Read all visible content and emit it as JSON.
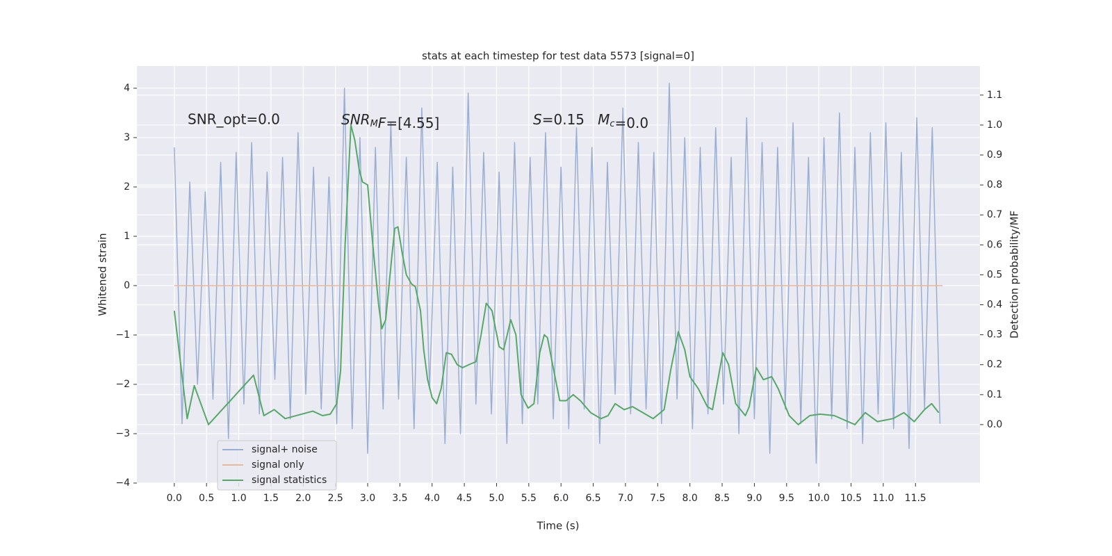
{
  "chart_data": {
    "type": "line",
    "title": "stats at each timestep for test data 5573 [signal=0]",
    "xlabel": "Time (s)",
    "ylabel": "Whitened strain",
    "y2label": "Detection probability/MF",
    "xlim": [
      -0.58,
      12.5
    ],
    "ylim": [
      -4,
      4.45
    ],
    "y2lim": [
      -0.195,
      1.197
    ],
    "xticks": [
      {
        "value": 0,
        "label": "0.0"
      },
      0.5,
      {
        "value": 1,
        "label": "1.0"
      },
      1.5,
      {
        "value": 2,
        "label": "2.0"
      },
      2.5,
      {
        "value": 3,
        "label": "3.0"
      },
      3.5,
      {
        "value": 4,
        "label": "4.0"
      },
      4.5,
      {
        "value": 5,
        "label": "5.0"
      },
      5.5,
      {
        "value": 6,
        "label": "6.0"
      },
      6.5,
      {
        "value": 7,
        "label": "7.0"
      },
      7.5,
      {
        "value": 8,
        "label": "8.0"
      },
      8.5,
      {
        "value": 9,
        "label": "9.0"
      },
      9.5,
      {
        "value": 10,
        "label": "10.0"
      },
      10.5,
      {
        "value": 11,
        "label": "11.0"
      },
      11.5
    ],
    "yticks": [
      {
        "value": -4,
        "label": "−4"
      },
      {
        "value": -3,
        "label": "−3"
      },
      {
        "value": -2,
        "label": "−2"
      },
      {
        "value": -1,
        "label": "−1"
      },
      0,
      1,
      2,
      3,
      4
    ],
    "y2ticks": [
      {
        "value": 0,
        "label": "0.0"
      },
      0.1,
      0.2,
      0.3,
      0.4,
      0.5,
      0.6,
      0.7,
      0.8,
      0.9,
      {
        "value": 1,
        "label": "1.0"
      },
      1.1
    ],
    "grid": true,
    "legend": "lower left",
    "annotations": [
      {
        "text": "SNR_opt=0.0",
        "math": false
      },
      {
        "text": "SNR_MF=[4.55]",
        "math": true
      },
      {
        "text": "S=0.15   M_c=0.0",
        "math": true
      }
    ],
    "series": [
      {
        "name": "signal+ noise",
        "color": "#9aaed3",
        "x": [
          0,
          0.12,
          0.24,
          0.36,
          0.48,
          0.6,
          0.72,
          0.84,
          0.96,
          1.08,
          1.2,
          1.32,
          1.44,
          1.56,
          1.68,
          1.8,
          1.92,
          2.04,
          2.16,
          2.28,
          2.4,
          2.52,
          2.64,
          2.76,
          2.88,
          3.0,
          3.12,
          3.24,
          3.36,
          3.48,
          3.6,
          3.72,
          3.84,
          3.96,
          4.08,
          4.2,
          4.32,
          4.44,
          4.56,
          4.68,
          4.8,
          4.92,
          5.04,
          5.16,
          5.28,
          5.4,
          5.52,
          5.64,
          5.76,
          5.88,
          6.0,
          6.12,
          6.24,
          6.36,
          6.48,
          6.6,
          6.72,
          6.84,
          6.96,
          7.08,
          7.2,
          7.32,
          7.44,
          7.56,
          7.68,
          7.8,
          7.92,
          8.04,
          8.16,
          8.28,
          8.4,
          8.52,
          8.64,
          8.76,
          8.88,
          9.0,
          9.12,
          9.24,
          9.36,
          9.48,
          9.6,
          9.72,
          9.84,
          9.96,
          10.08,
          10.2,
          10.32,
          10.44,
          10.56,
          10.68,
          10.8,
          10.92,
          11.04,
          11.16,
          11.28,
          11.4,
          11.52,
          11.64,
          11.76,
          11.88
        ],
        "values": [
          2.8,
          -2.8,
          2.1,
          -2.0,
          1.9,
          -2.3,
          2.5,
          -3.1,
          2.7,
          -2.4,
          2.9,
          -2.6,
          2.3,
          -1.9,
          2.6,
          -2.7,
          3.1,
          -2.2,
          2.4,
          -2.5,
          2.2,
          -2.8,
          4.0,
          -2.9,
          3.0,
          -3.4,
          2.8,
          -2.5,
          3.3,
          -2.3,
          2.6,
          -2.9,
          3.6,
          -2.1,
          2.5,
          -3.2,
          2.4,
          -3.0,
          3.9,
          -2.4,
          2.7,
          -2.6,
          2.3,
          -3.2,
          2.9,
          -2.8,
          2.6,
          -2.4,
          3.1,
          -2.7,
          2.4,
          -2.9,
          3.2,
          -2.5,
          2.8,
          -3.2,
          2.5,
          -2.2,
          3.6,
          -2.6,
          2.9,
          -2.5,
          2.7,
          -2.8,
          4.1,
          -2.3,
          3.0,
          -2.9,
          2.8,
          -2.6,
          3.2,
          -2.4,
          2.6,
          -3.0,
          3.4,
          -2.7,
          2.9,
          -3.4,
          2.8,
          -2.5,
          3.3,
          -2.8,
          2.6,
          -3.6,
          3.0,
          -2.7,
          3.5,
          -2.9,
          2.8,
          -3.2,
          3.1,
          -2.6,
          3.3,
          -2.9,
          2.7,
          -3.3,
          3.4,
          -2.5,
          3.2,
          -2.8
        ]
      },
      {
        "name": "signal only",
        "color": "#e9b89a",
        "x": [
          0,
          11.92
        ],
        "values": [
          0,
          0
        ]
      },
      {
        "name": "signal statistics",
        "color": "#55a868",
        "axis": "y2",
        "x": [
          0,
          0.2,
          0.31,
          0.53,
          1.23,
          1.39,
          1.55,
          1.72,
          2.15,
          2.3,
          2.42,
          2.52,
          2.58,
          2.65,
          2.74,
          2.8,
          2.87,
          2.92,
          3.0,
          3.08,
          3.17,
          3.22,
          3.28,
          3.37,
          3.42,
          3.47,
          3.53,
          3.6,
          3.68,
          3.74,
          3.82,
          3.87,
          3.93,
          4.0,
          4.07,
          4.14,
          4.22,
          4.3,
          4.39,
          4.47,
          4.57,
          4.68,
          4.76,
          4.84,
          4.93,
          5.04,
          5.11,
          5.22,
          5.3,
          5.38,
          5.49,
          5.58,
          5.67,
          5.74,
          5.79,
          5.87,
          5.98,
          6.08,
          6.19,
          6.3,
          6.46,
          6.62,
          6.73,
          6.84,
          6.98,
          7.11,
          7.27,
          7.43,
          7.6,
          7.7,
          7.82,
          7.92,
          8.0,
          8.13,
          8.27,
          8.35,
          8.51,
          8.6,
          8.71,
          8.86,
          8.92,
          9.03,
          9.14,
          9.27,
          9.37,
          9.54,
          9.68,
          9.86,
          10.02,
          10.24,
          10.56,
          10.72,
          10.91,
          11.15,
          11.32,
          11.48,
          11.64,
          11.75,
          11.86
        ],
        "values": [
          0.38,
          0.02,
          0.13,
          0.0,
          0.165,
          0.03,
          0.05,
          0.02,
          0.045,
          0.03,
          0.035,
          0.07,
          0.18,
          0.6,
          1.0,
          0.95,
          0.85,
          0.81,
          0.8,
          0.6,
          0.4,
          0.32,
          0.35,
          0.55,
          0.655,
          0.66,
          0.58,
          0.5,
          0.47,
          0.46,
          0.38,
          0.25,
          0.15,
          0.09,
          0.07,
          0.12,
          0.24,
          0.235,
          0.2,
          0.19,
          0.2,
          0.21,
          0.3,
          0.405,
          0.38,
          0.26,
          0.25,
          0.35,
          0.3,
          0.1,
          0.055,
          0.07,
          0.24,
          0.3,
          0.29,
          0.2,
          0.08,
          0.08,
          0.1,
          0.08,
          0.04,
          0.02,
          0.03,
          0.07,
          0.05,
          0.06,
          0.04,
          0.02,
          0.05,
          0.18,
          0.31,
          0.25,
          0.16,
          0.12,
          0.06,
          0.05,
          0.24,
          0.2,
          0.07,
          0.03,
          0.06,
          0.19,
          0.15,
          0.16,
          0.12,
          0.03,
          0.0,
          0.03,
          0.035,
          0.03,
          0.0,
          0.04,
          0.01,
          0.02,
          0.04,
          0.01,
          0.05,
          0.07,
          0.04
        ]
      }
    ]
  }
}
